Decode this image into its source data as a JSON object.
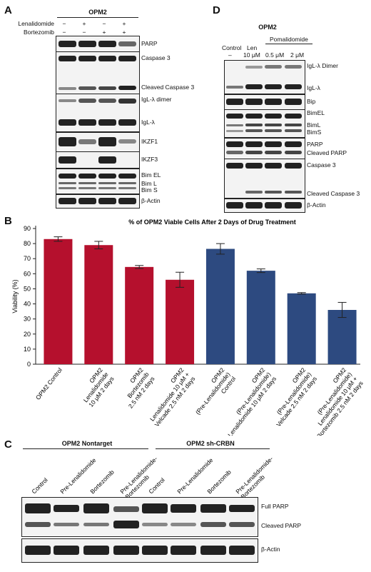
{
  "panels": {
    "A": "A",
    "B": "B",
    "C": "C",
    "D": "D"
  },
  "panelA": {
    "header": "OPM2",
    "treatments": [
      {
        "name": "Lenalidomide",
        "signs": [
          "−",
          "+",
          "−",
          "+"
        ]
      },
      {
        "name": "Bortezomib",
        "signs": [
          "−",
          "−",
          "+",
          "+"
        ]
      }
    ],
    "bands": [
      "PARP",
      "Caspase 3",
      "Cleaved Caspase 3",
      "IgL-λ dimer",
      "IgL-λ",
      "IKZF1",
      "IKZF3",
      "Bim EL",
      "Bim L",
      "Bim S",
      "β-Actin"
    ]
  },
  "panelD": {
    "header": "OPM2",
    "groups": [
      "Control",
      "Len",
      "Pomalidomide"
    ],
    "doses": [
      "–",
      "10 μM",
      "0.5 μM",
      "2 μM"
    ],
    "bands": [
      "IgL-λ Dimer",
      "IgL-λ",
      "Bip",
      "BimEL",
      "BimL",
      "BimS",
      "PARP",
      "Cleaved PARP",
      "Caspase 3",
      "Cleaved Caspase 3",
      "β-Actin"
    ]
  },
  "panelC": {
    "groups": [
      "OPM2 Nontarget",
      "OPM2 sh-CRBN"
    ],
    "lanes": [
      "Control",
      "Pre-Lenalidomide",
      "Bortezomib",
      "Pre-Lenalidomide-\nBortezomib",
      "Control",
      "Pre-Lenalidomide",
      "Bortezomib",
      "Pre-Lenalidomide-\nBortezomib"
    ],
    "bands": [
      "Full PARP",
      "Cleaved PARP",
      "β-Actin"
    ]
  },
  "chart_data": {
    "type": "bar",
    "title": "% of OPM2 Viable Cells After 2 Days of Drug Treatment",
    "ylabel": "Viability (%)",
    "ylim": [
      0,
      90
    ],
    "yticks": [
      0,
      10,
      20,
      30,
      40,
      50,
      60,
      70,
      80,
      90
    ],
    "grid": false,
    "categories": [
      "OPM2 Control",
      "OPM2\nLenalidomide\n10 μM 2 days",
      "OPM2\nBortezomib\n2.5 nM 2 days",
      "OPM2\nLenalidomide 10 μM +\nVelcade 2.5 nM 2 days",
      "OPM2\n(Pre-Lenalidomide)\nControl",
      "OPM2\n(Pre-Lenalidomide)\nLenalidomide 10 μM 2 days",
      "OPM2\n(Pre-Lenalidomide)\nVelcade 2.5 nM 2 days",
      "OPM2\n(Pre-Lenalidomide)\nLenalidomide 10 μM +\nBortezomib 2.5 nM 2 days"
    ],
    "values": [
      83,
      79,
      64.5,
      56,
      76.5,
      62,
      47,
      36
    ],
    "errors": [
      1.5,
      2.5,
      1,
      5,
      3.5,
      1.2,
      0.5,
      5
    ],
    "colors": [
      "#b5102d",
      "#b5102d",
      "#b5102d",
      "#b5102d",
      "#2d4a80",
      "#2d4a80",
      "#2d4a80",
      "#2d4a80"
    ]
  }
}
